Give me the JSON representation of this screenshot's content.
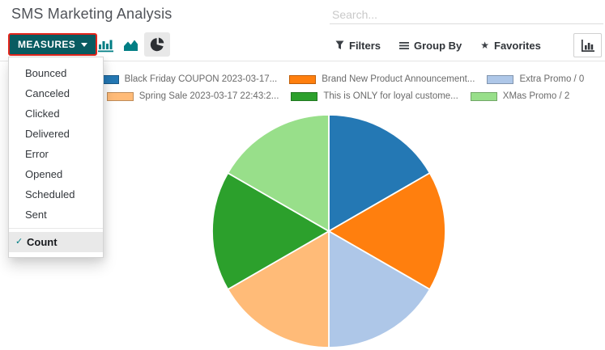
{
  "app": {
    "title": "SMS Marketing Analysis"
  },
  "search": {
    "placeholder": "Search..."
  },
  "toolbar": {
    "measures_label": "MEASURES",
    "filters_label": "Filters",
    "group_by_label": "Group By",
    "favorites_label": "Favorites"
  },
  "icons": {
    "measures_caret": "caret-down-icon",
    "chart_bar": "bar-chart-icon",
    "chart_line": "area-chart-icon",
    "chart_pie": "pie-chart-icon",
    "filters": "funnel-icon",
    "group_by": "bars-icon",
    "favorites": "star-icon",
    "favorites_glyph": "★",
    "view_switcher": "bar-chart-axis-icon",
    "selected_check_glyph": "✓"
  },
  "measures_menu": {
    "items": [
      "Bounced",
      "Canceled",
      "Clicked",
      "Delivered",
      "Error",
      "Opened",
      "Scheduled",
      "Sent"
    ],
    "selected_item": "Count"
  },
  "colors": {
    "accent_teal": "#017e84",
    "measures_button_bg": "#085b61",
    "highlight_border_red": "#e3251c",
    "menu_selected_bg": "#e9e9e9",
    "legend_text": "#6a6a6a",
    "pie_active_bg": "#e8e8e8"
  },
  "chart_data": {
    "type": "pie",
    "title": "SMS Marketing Analysis",
    "measure": "Count",
    "categories": [
      "Black Friday COUPON 2023-03-17...",
      "Brand New Product Announcement...",
      "Extra Promo / 0",
      "Spring Sale 2023-03-17 22:43:2...",
      "This is ONLY for loyal custome...",
      "XMas Promo / 2"
    ],
    "values": [
      1,
      1,
      1,
      1,
      1,
      1
    ],
    "colors": [
      "#2478b4",
      "#ff7f0e",
      "#aec7e8",
      "#ffbb78",
      "#2ca02c",
      "#98df8a"
    ],
    "start_angle_deg": 0,
    "direction": "clockwise",
    "legend_position": "top",
    "legend_rows": [
      [
        0,
        1,
        2
      ],
      [
        3,
        4,
        5
      ]
    ],
    "grid": false
  }
}
